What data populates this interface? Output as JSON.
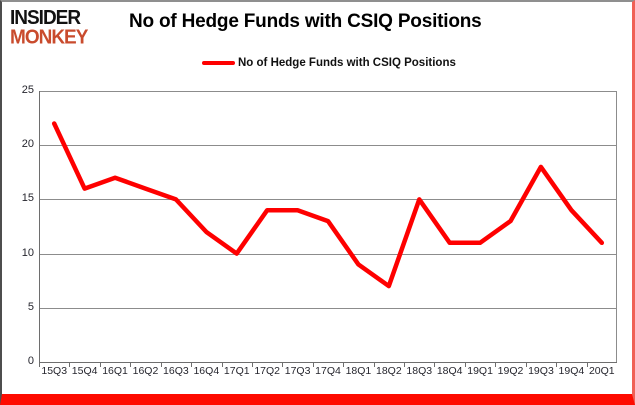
{
  "brand": {
    "line1": "INSIDER",
    "line2": "MONKEY"
  },
  "title": "No of Hedge Funds with CSIQ Positions",
  "legend": {
    "label": "No of Hedge Funds with CSIQ Positions"
  },
  "chart_data": {
    "type": "line",
    "title": "No of Hedge Funds with CSIQ Positions",
    "categories": [
      "15Q3",
      "15Q4",
      "16Q1",
      "16Q2",
      "16Q3",
      "16Q4",
      "17Q1",
      "17Q2",
      "17Q3",
      "17Q4",
      "18Q1",
      "18Q2",
      "18Q3",
      "18Q4",
      "19Q1",
      "19Q2",
      "19Q3",
      "19Q4",
      "20Q1"
    ],
    "series": [
      {
        "name": "No of Hedge Funds with CSIQ Positions",
        "values": [
          22,
          16,
          17,
          16,
          15,
          12,
          10,
          14,
          14,
          13,
          9,
          7,
          15,
          11,
          11,
          13,
          18,
          14,
          11
        ]
      }
    ],
    "xlabel": "",
    "ylabel": "",
    "ylim": [
      0,
      25
    ],
    "yticks": [
      0,
      5,
      10,
      15,
      20,
      25
    ],
    "grid": true,
    "legend_position": "top",
    "colors": {
      "line": "#fe0000",
      "gridline": "#8c8c8c",
      "axis": "#6e6e6e",
      "tick_label": "#26262e",
      "brand_accent": "#c94b2d",
      "frame_bottom": "#fe0b00"
    }
  }
}
